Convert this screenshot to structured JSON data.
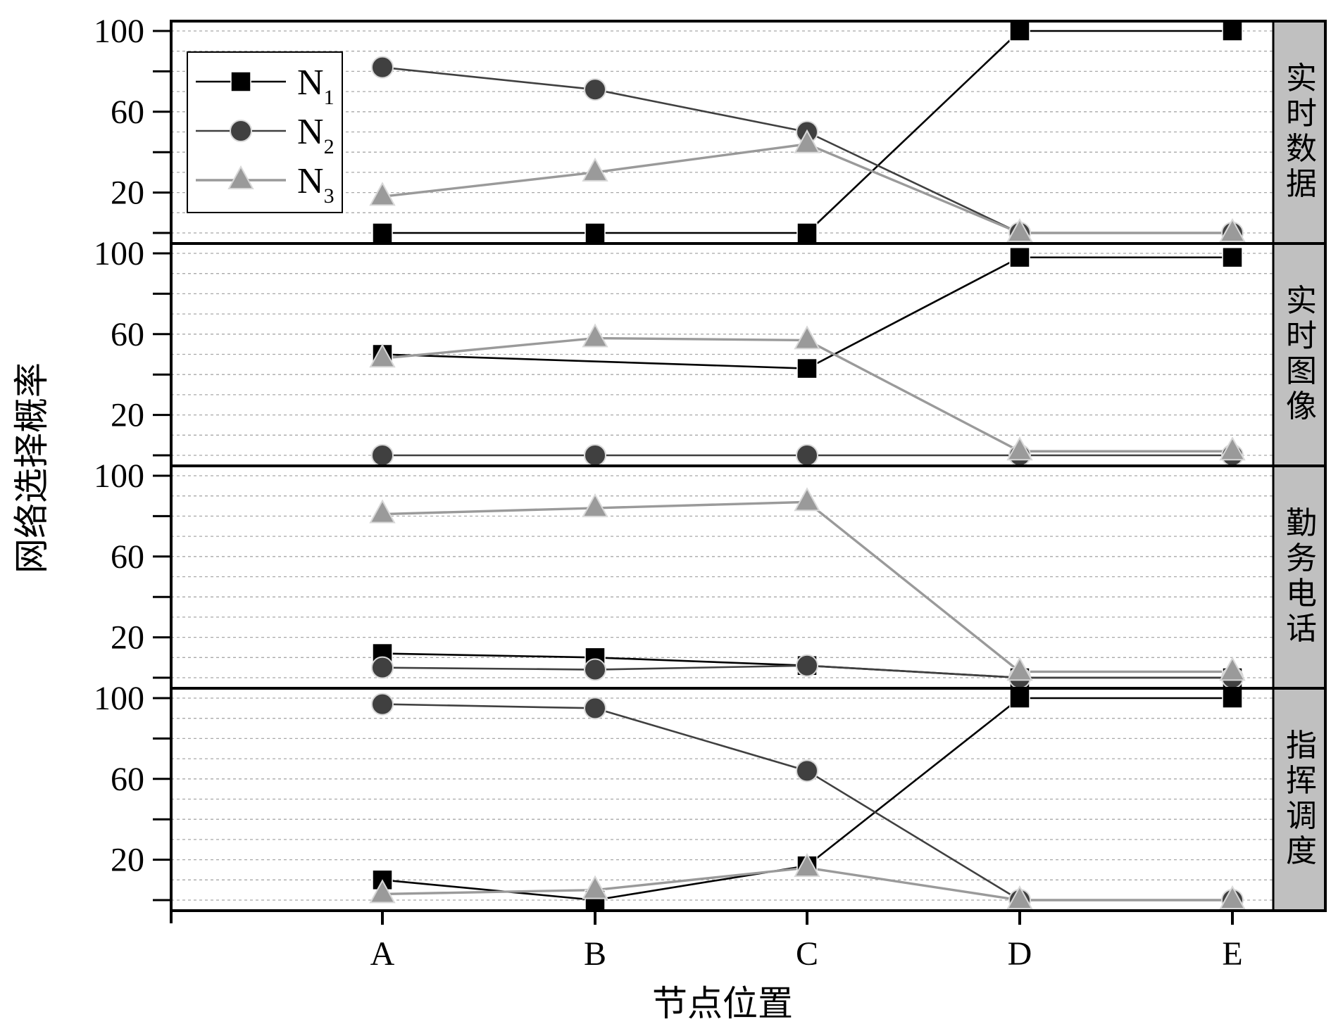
{
  "chart_data": {
    "type": "line",
    "categories": [
      "A",
      "B",
      "C",
      "D",
      "E"
    ],
    "xlabel": "节点位置",
    "ylabel": "网络选择概率",
    "ylim": [
      0,
      100
    ],
    "yticks": [
      20,
      60,
      100
    ],
    "grid": "horizontal dashed",
    "legend": {
      "placement": "top-left of first panel",
      "entries": [
        {
          "base": "N",
          "sub": "1"
        },
        {
          "base": "N",
          "sub": "2"
        },
        {
          "base": "N",
          "sub": "3"
        }
      ]
    },
    "colors": {
      "N1": "#000000",
      "N2": "#404040",
      "N3": "#9a9a9a",
      "strip": "#c0c0c0"
    },
    "panels": [
      {
        "label": "实时数据",
        "series": [
          {
            "values": [
              0,
              0,
              0,
              100,
              100
            ]
          },
          {
            "values": [
              82,
              71,
              50,
              0,
              0
            ]
          },
          {
            "values": [
              18,
              30,
              44,
              0,
              0
            ]
          }
        ]
      },
      {
        "label": "实时图像",
        "series": [
          {
            "values": [
              50,
              null,
              43,
              98,
              98
            ]
          },
          {
            "values": [
              0,
              0,
              0,
              0,
              0
            ]
          },
          {
            "values": [
              48,
              58,
              57,
              2,
              2
            ]
          }
        ]
      },
      {
        "label": "勤务电话",
        "series": [
          {
            "values": [
              12,
              10,
              6,
              0,
              0
            ]
          },
          {
            "values": [
              5,
              4,
              6,
              0,
              0
            ]
          },
          {
            "values": [
              81,
              84,
              87,
              3,
              3
            ]
          }
        ]
      },
      {
        "label": "指挥调度",
        "series": [
          {
            "values": [
              10,
              0,
              17,
              100,
              100
            ]
          },
          {
            "values": [
              97,
              95,
              64,
              0,
              0
            ]
          },
          {
            "values": [
              3,
              5,
              16,
              0,
              0
            ]
          }
        ]
      }
    ]
  }
}
